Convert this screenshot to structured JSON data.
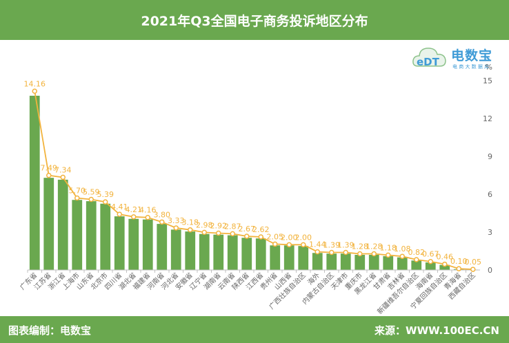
{
  "header": {
    "title": "2021年Q3全国电子商务投诉地区分布"
  },
  "footer": {
    "left": "图表编制：电数宝",
    "right": "来源：WWW.100EC.CN"
  },
  "logo": {
    "mark_text": "eDT",
    "wordmark": "电数宝",
    "subtitle": "电 商 大 数 据 库"
  },
  "colors": {
    "header_bg": "#6aa84f",
    "bar": "#6aa84f",
    "line": "#f2b33d",
    "label": "#f2b33d",
    "axis_text": "#666666"
  },
  "chart_data": {
    "type": "bar",
    "unit_label": "%",
    "categories": [
      "广东省",
      "江苏省",
      "浙江省",
      "上海市",
      "山东省",
      "北京市",
      "四川省",
      "湖北省",
      "福建省",
      "河南省",
      "河北省",
      "安徽省",
      "辽宁省",
      "湖南省",
      "云南省",
      "陕西省",
      "江西省",
      "贵州省",
      "山西省",
      "广西壮族自治区",
      "海外",
      "内蒙古自治区",
      "天津市",
      "重庆市",
      "黑龙江省",
      "甘肃省",
      "吉林省",
      "新疆维吾尔自治区",
      "海南省",
      "宁夏回族自治区",
      "青海省",
      "西藏自治区"
    ],
    "values": [
      13.8,
      7.3,
      7.15,
      5.55,
      5.45,
      5.25,
      4.25,
      4.05,
      4.0,
      3.65,
      3.2,
      3.05,
      2.85,
      2.8,
      2.75,
      2.55,
      2.5,
      1.95,
      1.95,
      1.9,
      1.35,
      1.3,
      1.3,
      1.2,
      1.2,
      1.1,
      1.0,
      0.75,
      0.6,
      0.4,
      0.07,
      0.03
    ],
    "line_values": [
      14.16,
      7.49,
      7.34,
      5.7,
      5.59,
      5.39,
      4.41,
      4.21,
      4.16,
      3.8,
      3.33,
      3.18,
      2.98,
      2.92,
      2.87,
      2.67,
      2.62,
      2.05,
      2.0,
      2.0,
      1.44,
      1.39,
      1.39,
      1.28,
      1.28,
      1.18,
      1.08,
      0.82,
      0.67,
      0.46,
      0.1,
      0.05
    ],
    "data_labels": [
      "14.16",
      "7.49",
      "7.34",
      "5.70",
      "5.59",
      "5.39",
      "4.41",
      "4.21",
      "4.16",
      "3.80",
      "3.33",
      "3.18",
      "2.98",
      "2.92",
      "2.87",
      "2.67",
      "2.62",
      "2.05",
      "2.00",
      "2.00",
      "1.44",
      "1.39",
      "1.39",
      "1.28",
      "1.28",
      "1.18",
      "1.08",
      "0.82",
      "0.67",
      "0.46",
      "0.10",
      "0.05"
    ],
    "ylim": [
      0,
      15
    ],
    "y_ticks": [
      0,
      3,
      6,
      9,
      12,
      15
    ],
    "y_axis_side": "right",
    "grid": false
  }
}
